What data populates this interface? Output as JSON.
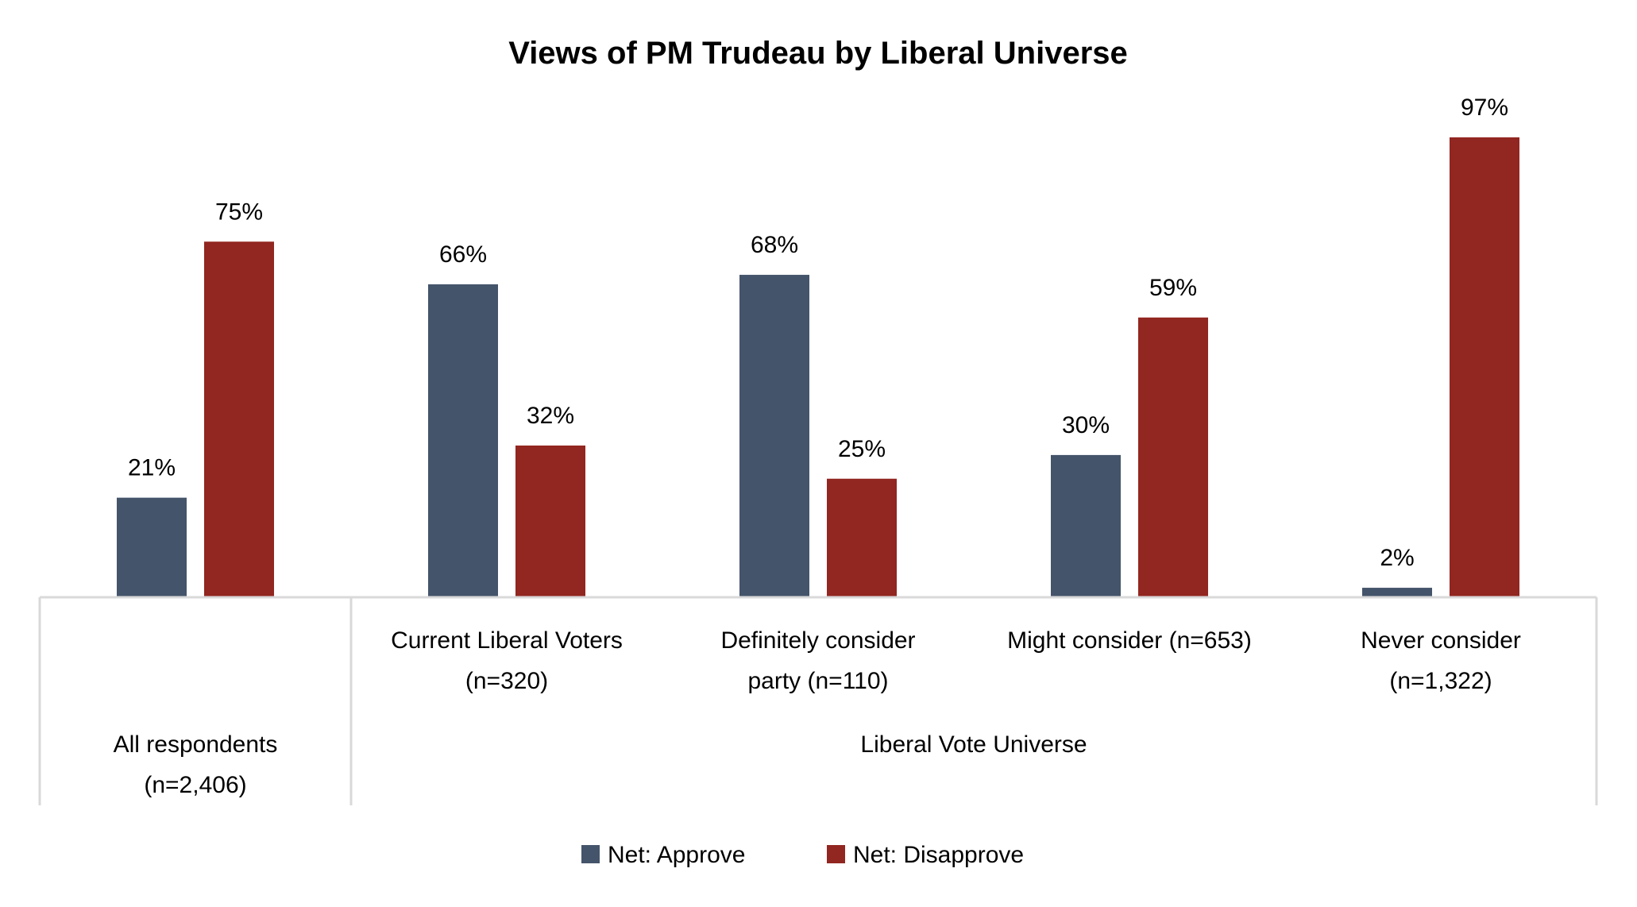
{
  "chart_data": {
    "type": "bar",
    "title": "Views of PM Trudeau by Liberal Universe",
    "categories": [
      [
        "All respondents",
        "(n=2,406)"
      ],
      [
        "Current Liberal Voters",
        "(n=320)"
      ],
      [
        "Definitely consider",
        "party (n=110)"
      ],
      [
        "Might consider (n=653)"
      ],
      [
        "Never consider",
        "(n=1,322)"
      ]
    ],
    "group_labels": [
      "",
      "Liberal Vote Universe"
    ],
    "series": [
      {
        "name": "Net: Approve",
        "color": "#44546a",
        "values": [
          21,
          66,
          68,
          30,
          2
        ]
      },
      {
        "name": "Net: Disapprove",
        "color": "#922620",
        "values": [
          75,
          32,
          25,
          59,
          97
        ]
      }
    ],
    "value_format": "percent",
    "ylim": [
      0,
      100
    ],
    "grid": false,
    "y_axis_visible": false,
    "legend": "bottom",
    "axis_color": "#d9d9d9"
  }
}
